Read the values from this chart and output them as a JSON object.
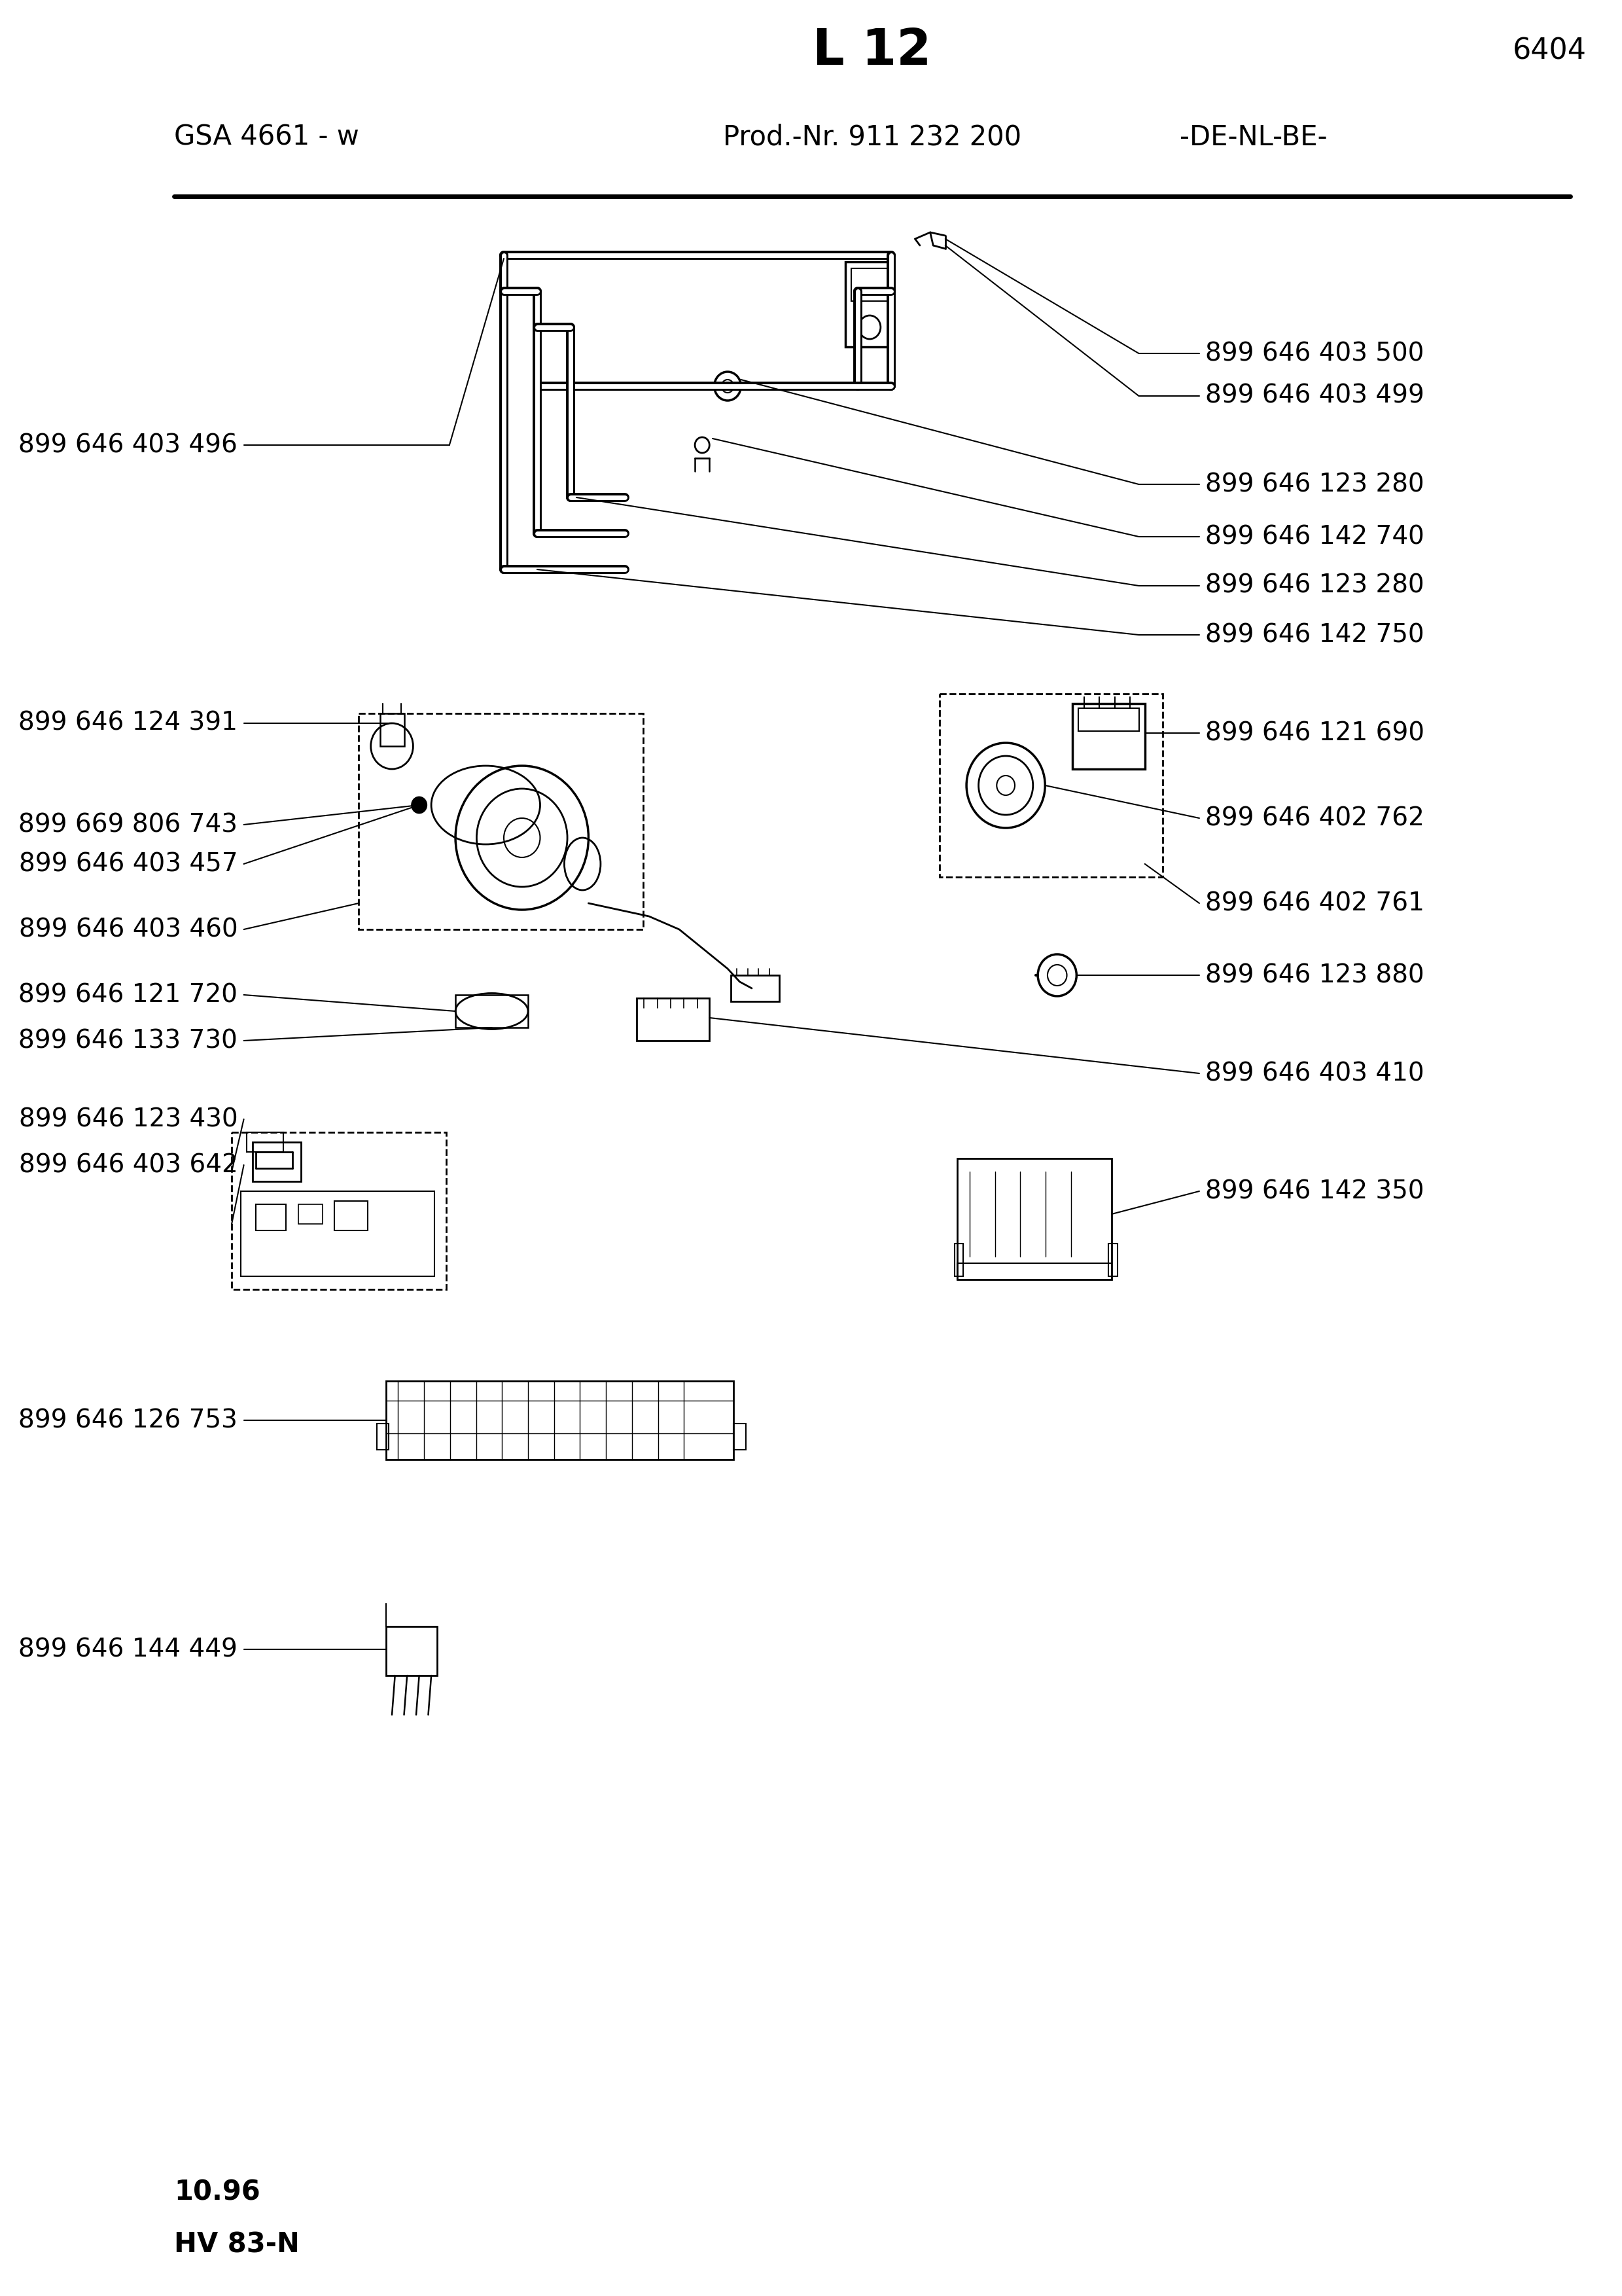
{
  "page_title": "L 12",
  "page_number": "6404",
  "model": "GSA 4661 - w",
  "prod_nr": "Prod.-Nr. 911 232 200",
  "region": "-DE-NL-BE-",
  "date": "10.96",
  "hv": "HV 83-N",
  "background": "#ffffff"
}
